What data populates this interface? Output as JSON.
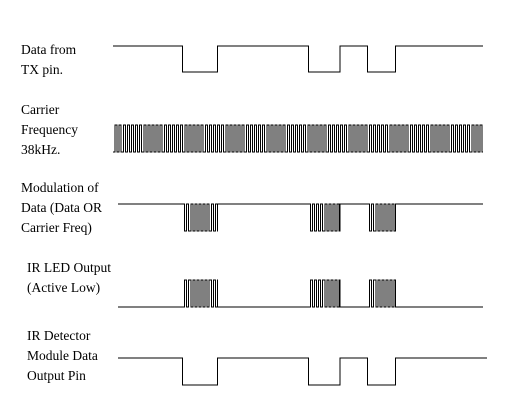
{
  "signals": [
    {
      "id": "tx-data",
      "label_lines": [
        "Data from",
        "TX pin."
      ],
      "kind": "data",
      "active_low": true,
      "low_periods": [
        [
          0.188,
          0.283
        ],
        [
          0.528,
          0.613
        ],
        [
          0.688,
          0.763
        ]
      ]
    },
    {
      "id": "carrier",
      "label_lines": [
        "Carrier",
        "Frequency",
        "38kHz."
      ],
      "kind": "carrier",
      "continuous": true
    },
    {
      "id": "modulation",
      "label_lines": [
        "Modulation of",
        "Data (Data OR",
        "Carrier Freq)"
      ],
      "kind": "bursts_high_idle",
      "burst_periods": [
        [
          0.188,
          0.283
        ],
        [
          0.528,
          0.613
        ],
        [
          0.688,
          0.763
        ]
      ]
    },
    {
      "id": "ir-led",
      "label_lines": [
        "IR LED Output",
        "(Active Low)"
      ],
      "kind": "bursts_low_idle",
      "burst_periods": [
        [
          0.188,
          0.283
        ],
        [
          0.528,
          0.613
        ],
        [
          0.688,
          0.763
        ]
      ]
    },
    {
      "id": "ir-detector",
      "label_lines": [
        "IR Detector",
        "Module Data",
        "Output Pin"
      ],
      "kind": "data",
      "active_low": true,
      "low_periods": [
        [
          0.188,
          0.283
        ],
        [
          0.528,
          0.613
        ],
        [
          0.688,
          0.763
        ]
      ]
    }
  ],
  "colors": {
    "line": "#000000",
    "background": "#ffffff"
  }
}
